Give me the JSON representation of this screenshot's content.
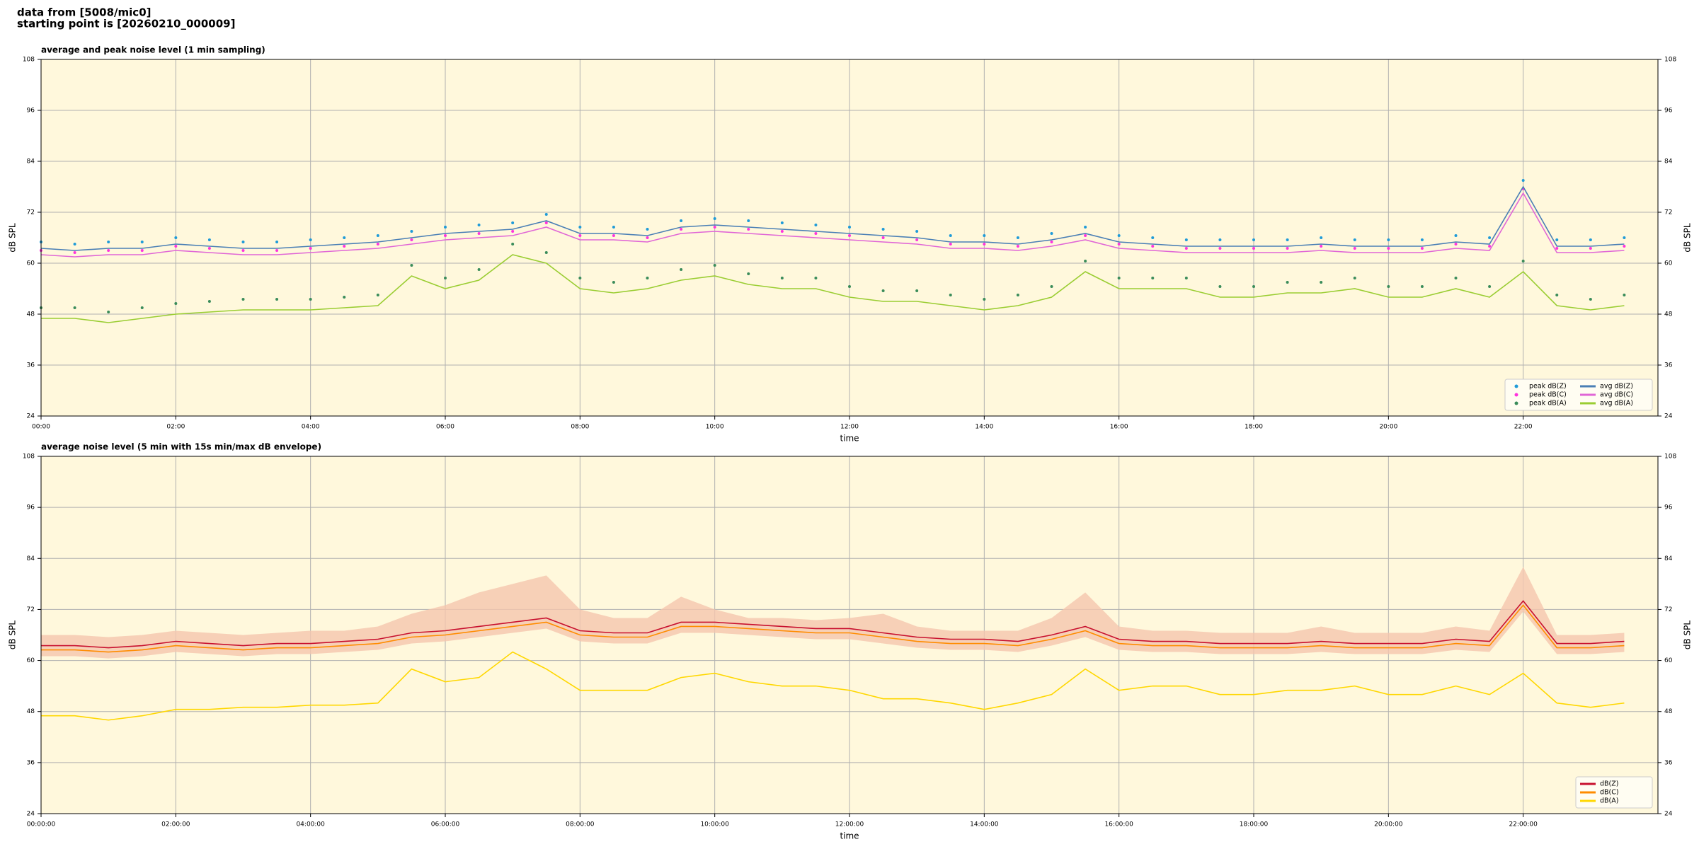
{
  "header": [
    "data from [5008/mic0]",
    "starting point is [20260210_000009]"
  ],
  "chart_data": [
    {
      "type": "line",
      "title": "average and peak noise level (1 min sampling)",
      "xlabel": "time",
      "ylabel": "dB SPL",
      "xlim": [
        0,
        24
      ],
      "ylim": [
        24,
        108
      ],
      "yticks": [
        24,
        36,
        48,
        60,
        72,
        84,
        96,
        108
      ],
      "xticks": [
        {
          "value": 0,
          "label": "00:00"
        },
        {
          "value": 2,
          "label": "02:00"
        },
        {
          "value": 4,
          "label": "04:00"
        },
        {
          "value": 6,
          "label": "06:00"
        },
        {
          "value": 8,
          "label": "08:00"
        },
        {
          "value": 10,
          "label": "10:00"
        },
        {
          "value": 12,
          "label": "12:00"
        },
        {
          "value": 14,
          "label": "14:00"
        },
        {
          "value": 16,
          "label": "16:00"
        },
        {
          "value": 18,
          "label": "18:00"
        },
        {
          "value": 20,
          "label": "20:00"
        },
        {
          "value": 22,
          "label": "22:00"
        }
      ],
      "grid": true,
      "background": "#fff8dc",
      "legend": "lower right",
      "legend_columns": 2,
      "x": [
        0,
        0.5,
        1,
        1.5,
        2,
        2.5,
        3,
        3.5,
        4,
        4.5,
        5,
        5.5,
        6,
        6.5,
        7,
        7.5,
        8,
        8.5,
        9,
        9.5,
        10,
        10.5,
        11,
        11.5,
        12,
        12.5,
        13,
        13.5,
        14,
        14.5,
        15,
        15.5,
        16,
        16.5,
        17,
        17.5,
        18,
        18.5,
        19,
        19.5,
        20,
        20.5,
        21,
        21.5,
        22,
        22.5,
        23,
        23.5
      ],
      "series": [
        {
          "name": "peak dB(Z)",
          "style": "points",
          "color": "#1f9bd8",
          "values": [
            65,
            64.5,
            65,
            65,
            66,
            65.5,
            65,
            65,
            65.5,
            66,
            66.5,
            67.5,
            68.5,
            69,
            69.5,
            71.5,
            68.5,
            68.5,
            68,
            70,
            70.5,
            70,
            69.5,
            69,
            68.5,
            68,
            67.5,
            66.5,
            66.5,
            66,
            67,
            68.5,
            66.5,
            66,
            65.5,
            65.5,
            65.5,
            65.5,
            66,
            65.5,
            65.5,
            65.5,
            66.5,
            66,
            79.5,
            65.5,
            65.5,
            66
          ]
        },
        {
          "name": "peak dB(C)",
          "style": "points",
          "color": "#ff33dd",
          "values": [
            63,
            62.5,
            63,
            63,
            64,
            63.5,
            63,
            63,
            63.5,
            64,
            64.5,
            65.5,
            66.5,
            67,
            67.5,
            69.5,
            66.5,
            66.5,
            66,
            68,
            68.5,
            68,
            67.5,
            67,
            66.5,
            66,
            65.5,
            64.5,
            64.5,
            64,
            65,
            66.5,
            64.5,
            64,
            63.5,
            63.5,
            63.5,
            63.5,
            64,
            63.5,
            63.5,
            63.5,
            64.5,
            64,
            77.5,
            63.5,
            63.5,
            64
          ]
        },
        {
          "name": "peak dB(A)",
          "style": "points",
          "color": "#3a8c5a",
          "values": [
            49.5,
            49.5,
            48.5,
            49.5,
            50.5,
            51,
            51.5,
            51.5,
            51.5,
            52,
            52.5,
            59.5,
            56.5,
            58.5,
            64.5,
            62.5,
            56.5,
            55.5,
            56.5,
            58.5,
            59.5,
            57.5,
            56.5,
            56.5,
            54.5,
            53.5,
            53.5,
            52.5,
            51.5,
            52.5,
            54.5,
            60.5,
            56.5,
            56.5,
            56.5,
            54.5,
            54.5,
            55.5,
            55.5,
            56.5,
            54.5,
            54.5,
            56.5,
            54.5,
            60.5,
            52.5,
            51.5,
            52.5
          ]
        },
        {
          "name": "avg dB(Z)",
          "style": "line",
          "color": "#4a7fb5",
          "values": [
            63.5,
            63,
            63.5,
            63.5,
            64.5,
            64,
            63.5,
            63.5,
            64,
            64.5,
            65,
            66,
            67,
            67.5,
            68,
            70,
            67,
            67,
            66.5,
            68.5,
            69,
            68.5,
            68,
            67.5,
            67,
            66.5,
            66,
            65,
            65,
            64.5,
            65.5,
            67,
            65,
            64.5,
            64,
            64,
            64,
            64,
            64.5,
            64,
            64,
            64,
            65,
            64.5,
            78,
            64,
            64,
            64.5
          ]
        },
        {
          "name": "avg dB(C)",
          "style": "line",
          "color": "#e066d6",
          "values": [
            62,
            61.5,
            62,
            62,
            63,
            62.5,
            62,
            62,
            62.5,
            63,
            63.5,
            64.5,
            65.5,
            66,
            66.5,
            68.5,
            65.5,
            65.5,
            65,
            67,
            67.5,
            67,
            66.5,
            66,
            65.5,
            65,
            64.5,
            63.5,
            63.5,
            63,
            64,
            65.5,
            63.5,
            63,
            62.5,
            62.5,
            62.5,
            62.5,
            63,
            62.5,
            62.5,
            62.5,
            63.5,
            63,
            76.5,
            62.5,
            62.5,
            63
          ]
        },
        {
          "name": "avg dB(A)",
          "style": "line",
          "color": "#9acd32",
          "values": [
            47,
            47,
            46,
            47,
            48,
            48.5,
            49,
            49,
            49,
            49.5,
            50,
            57,
            54,
            56,
            62,
            60,
            54,
            53,
            54,
            56,
            57,
            55,
            54,
            54,
            52,
            51,
            51,
            50,
            49,
            50,
            52,
            58,
            54,
            54,
            54,
            52,
            52,
            53,
            53,
            54,
            52,
            52,
            54,
            52,
            58,
            50,
            49,
            50
          ]
        }
      ]
    },
    {
      "type": "line",
      "title": "average noise level (5 min with 15s min/max dB envelope)",
      "xlabel": "time",
      "ylabel": "dB SPL",
      "xlim": [
        0,
        24
      ],
      "ylim": [
        24,
        108
      ],
      "yticks": [
        24,
        36,
        48,
        60,
        72,
        84,
        96,
        108
      ],
      "xticks": [
        {
          "value": 0,
          "label": "00:00:00"
        },
        {
          "value": 2,
          "label": "02:00:00"
        },
        {
          "value": 4,
          "label": "04:00:00"
        },
        {
          "value": 6,
          "label": "06:00:00"
        },
        {
          "value": 8,
          "label": "08:00:00"
        },
        {
          "value": 10,
          "label": "10:00:00"
        },
        {
          "value": 12,
          "label": "12:00:00"
        },
        {
          "value": 14,
          "label": "14:00:00"
        },
        {
          "value": 16,
          "label": "16:00:00"
        },
        {
          "value": 18,
          "label": "18:00:00"
        },
        {
          "value": 20,
          "label": "20:00:00"
        },
        {
          "value": 22,
          "label": "22:00:00"
        }
      ],
      "grid": true,
      "background": "#fff8dc",
      "legend": "lower right",
      "legend_columns": 1,
      "x": [
        0,
        0.5,
        1,
        1.5,
        2,
        2.5,
        3,
        3.5,
        4,
        4.5,
        5,
        5.5,
        6,
        6.5,
        7,
        7.5,
        8,
        8.5,
        9,
        9.5,
        10,
        10.5,
        11,
        11.5,
        12,
        12.5,
        13,
        13.5,
        14,
        14.5,
        15,
        15.5,
        16,
        16.5,
        17,
        17.5,
        18,
        18.5,
        19,
        19.5,
        20,
        20.5,
        21,
        21.5,
        22,
        22.5,
        23,
        23.5
      ],
      "envelope": {
        "color": "#f5c6ae",
        "high": [
          66,
          66,
          65.5,
          66,
          67,
          66.5,
          66,
          66.5,
          67,
          67,
          68,
          71,
          73,
          76,
          78,
          80,
          72,
          70,
          70,
          75,
          72,
          70,
          70,
          69.5,
          70,
          71,
          68,
          67,
          67,
          67,
          70,
          76,
          68,
          67,
          67,
          66.5,
          66.5,
          66.5,
          68,
          66.5,
          66.5,
          66.5,
          68,
          67,
          82,
          66,
          66,
          66.5
        ],
        "low": [
          61,
          61,
          60.5,
          61,
          62,
          61.5,
          61,
          61.5,
          61.5,
          62,
          62.5,
          64,
          64.5,
          65.5,
          66.5,
          67.5,
          64.5,
          64,
          64,
          66.5,
          66.5,
          66,
          65.5,
          65,
          65,
          64,
          63,
          62.5,
          62.5,
          62,
          63.5,
          65.5,
          62.5,
          62,
          62,
          61.5,
          61.5,
          61.5,
          62,
          61.5,
          61.5,
          61.5,
          62.5,
          62,
          71.5,
          61.5,
          61.5,
          62
        ]
      },
      "series": [
        {
          "name": "dB(Z)",
          "style": "line",
          "color": "#c8102e",
          "values": [
            63.5,
            63.5,
            63,
            63.5,
            64.5,
            64,
            63.5,
            64,
            64,
            64.5,
            65,
            66.5,
            67,
            68,
            69,
            70,
            67,
            66.5,
            66.5,
            69,
            69,
            68.5,
            68,
            67.5,
            67.5,
            66.5,
            65.5,
            65,
            65,
            64.5,
            66,
            68,
            65,
            64.5,
            64.5,
            64,
            64,
            64,
            64.5,
            64,
            64,
            64,
            65,
            64.5,
            74,
            64,
            64,
            64.5
          ]
        },
        {
          "name": "dB(C)",
          "style": "line",
          "color": "#ff8c00",
          "values": [
            62.5,
            62.5,
            62,
            62.5,
            63.5,
            63,
            62.5,
            63,
            63,
            63.5,
            64,
            65.5,
            66,
            67,
            68,
            69,
            66,
            65.5,
            65.5,
            68,
            68,
            67.5,
            67,
            66.5,
            66.5,
            65.5,
            64.5,
            64,
            64,
            63.5,
            65,
            67,
            64,
            63.5,
            63.5,
            63,
            63,
            63,
            63.5,
            63,
            63,
            63,
            64,
            63.5,
            73,
            63,
            63,
            63.5
          ]
        },
        {
          "name": "dB(A)",
          "style": "line",
          "color": "#ffd700",
          "values": [
            47,
            47,
            46,
            47,
            48.5,
            48.5,
            49,
            49,
            49.5,
            49.5,
            50,
            58,
            55,
            56,
            62,
            58,
            53,
            53,
            53,
            56,
            57,
            55,
            54,
            54,
            53,
            51,
            51,
            50,
            48.5,
            50,
            52,
            58,
            53,
            54,
            54,
            52,
            52,
            53,
            53,
            54,
            52,
            52,
            54,
            52,
            57,
            50,
            49,
            50
          ]
        }
      ]
    }
  ]
}
